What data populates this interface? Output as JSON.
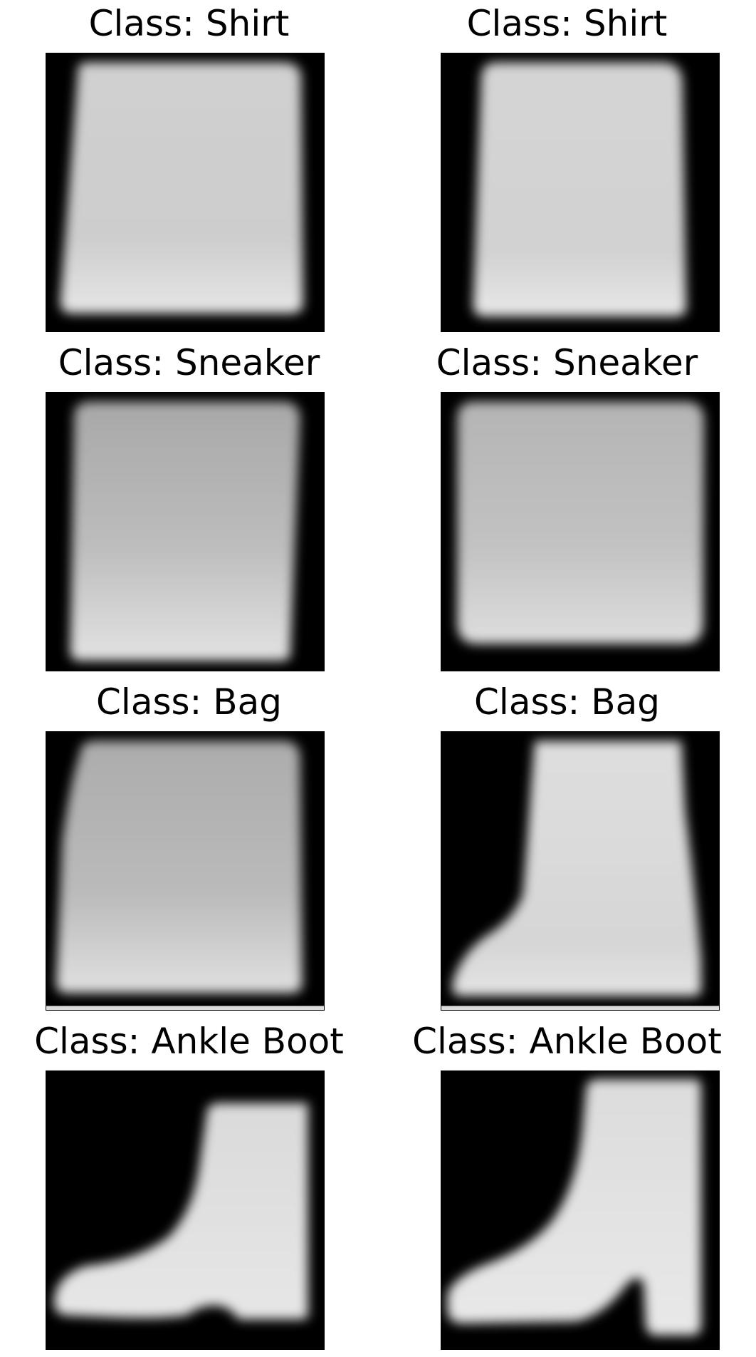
{
  "panels": [
    {
      "title": "Class: Shirt",
      "icon": "generated-shirt-image"
    },
    {
      "title": "Class: Shirt",
      "icon": "generated-shirt-image"
    },
    {
      "title": "Class: Sneaker",
      "icon": "generated-sneaker-image"
    },
    {
      "title": "Class: Sneaker",
      "icon": "generated-sneaker-image"
    },
    {
      "title": "Class: Bag",
      "icon": "generated-bag-image"
    },
    {
      "title": "Class: Bag",
      "icon": "generated-bag-image"
    },
    {
      "title": "Class: Ankle Boot",
      "icon": "generated-ankle-boot-image"
    },
    {
      "title": "Class: Ankle Boot",
      "icon": "generated-ankle-boot-image"
    }
  ],
  "colors": {
    "background": "#000000",
    "item_light": "#dcdcdc",
    "item_mid": "#b4b4b4",
    "figure_bg": "#ffffff"
  }
}
